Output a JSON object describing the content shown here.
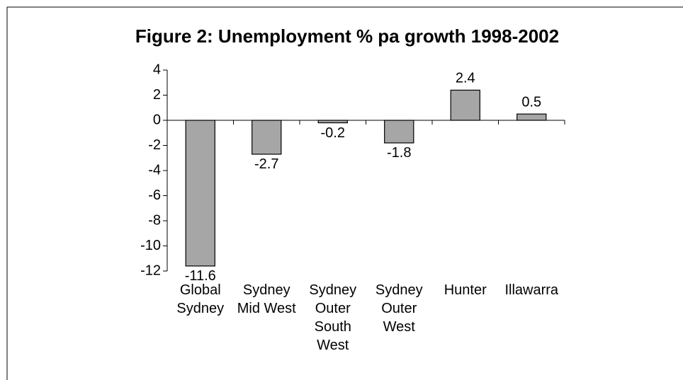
{
  "chart_data": {
    "type": "bar",
    "title": "Figure 2: Unemployment % pa growth 1998-2002",
    "categories": [
      "Global Sydney",
      "Sydney Mid West",
      "Sydney Outer South West",
      "Sydney Outer West",
      "Hunter",
      "Illawarra"
    ],
    "values": [
      -11.6,
      -2.7,
      -0.2,
      -1.8,
      2.4,
      0.5
    ],
    "color": "#a6a6a6",
    "ylim": [
      -12,
      4
    ],
    "yticks": [
      -12,
      -10,
      -8,
      -6,
      -4,
      -2,
      0,
      2,
      4
    ],
    "grid": false
  }
}
